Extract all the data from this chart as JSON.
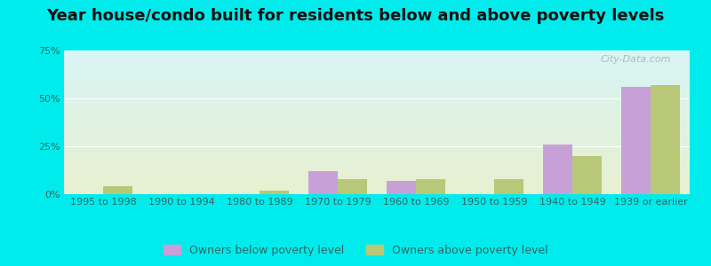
{
  "title": "Year house/condo built for residents below and above poverty levels",
  "categories": [
    "1995 to 1998",
    "1990 to 1994",
    "1980 to 1989",
    "1970 to 1979",
    "1960 to 1969",
    "1950 to 1959",
    "1940 to 1949",
    "1939 or earlier"
  ],
  "below_poverty": [
    0.0,
    0.0,
    0.0,
    12.0,
    7.0,
    0.0,
    26.0,
    56.0
  ],
  "above_poverty": [
    4.0,
    0.0,
    2.0,
    8.0,
    8.0,
    8.0,
    20.0,
    57.0
  ],
  "below_color": "#c8a0d8",
  "above_color": "#b8c878",
  "ylim": [
    0,
    75
  ],
  "yticks": [
    0,
    25,
    50,
    75
  ],
  "ytick_labels": [
    "0%",
    "25%",
    "50%",
    "75%"
  ],
  "background_top": "#d8f5f5",
  "background_bottom": "#e8f0d0",
  "outer_bg": "#00ecec",
  "bar_width": 0.38,
  "legend_below": "Owners below poverty level",
  "legend_above": "Owners above poverty level",
  "watermark": "City-Data.com",
  "title_fontsize": 13,
  "axis_fontsize": 8,
  "legend_fontsize": 9
}
